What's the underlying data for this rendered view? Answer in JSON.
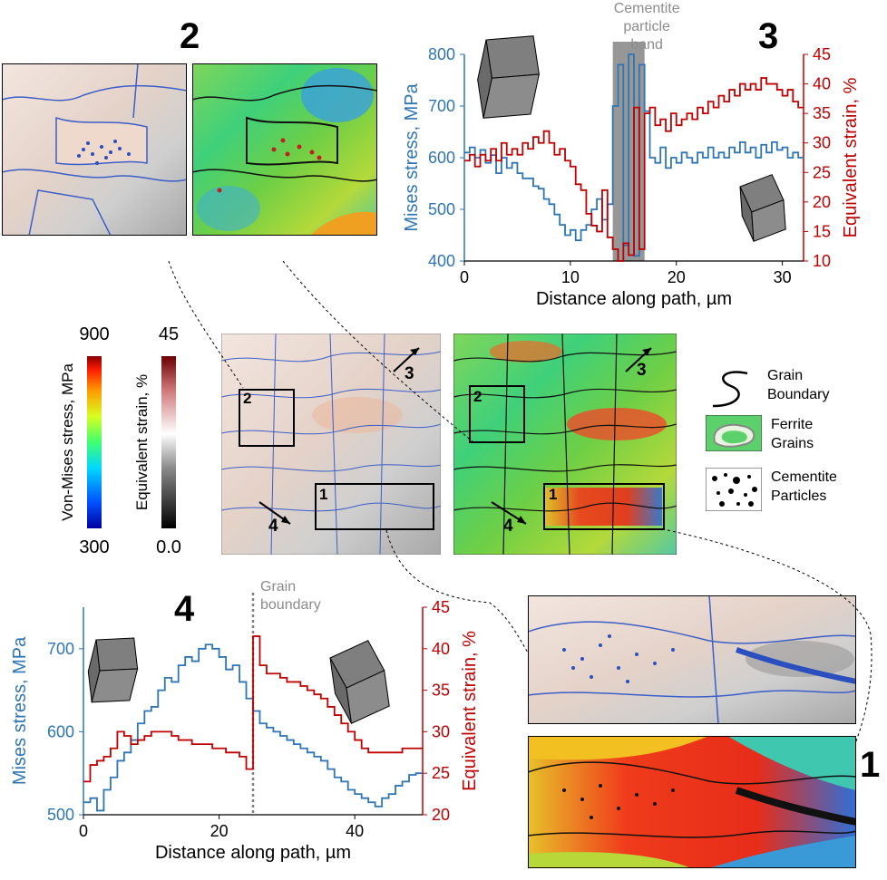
{
  "labels": {
    "panel1": "1",
    "panel2": "2",
    "panel3": "3",
    "panel4": "4",
    "arrow3": "3",
    "arrow4": "4",
    "box1": "1",
    "box2": "2"
  },
  "colorbars": {
    "stress": {
      "title": "Von-Mises stress, MPa",
      "max": "900",
      "min": "300"
    },
    "strain": {
      "title": "Equivalent strain, %",
      "max": "45",
      "min": "0.0"
    }
  },
  "legend": {
    "grain": "Grain Boundary",
    "ferrite": "Ferrite Grains",
    "cementite": "Cementite Particles"
  },
  "colors": {
    "stress_series": "#2e75b6",
    "strain_series": "#c00000",
    "band": "#8c8c8c",
    "gb_line": "#808080"
  },
  "chart_data": [
    {
      "id": "3",
      "type": "line",
      "xlabel": "Distance along path, µm",
      "ylabel": "Mises stress, MPa",
      "y2label": "Equivalent strain, %",
      "xlim": [
        0,
        32
      ],
      "ylim": [
        400,
        800
      ],
      "y2lim": [
        10,
        45
      ],
      "xticks": [
        0,
        10,
        20,
        30
      ],
      "yticks": [
        400,
        500,
        600,
        700,
        800
      ],
      "y2ticks": [
        10,
        15,
        20,
        25,
        30,
        35,
        40,
        45
      ],
      "annotation": "Cementite particle band",
      "band": [
        14.0,
        17.0
      ],
      "series": [
        {
          "axis": "y",
          "x": [
            0,
            0.5,
            1,
            1.5,
            2,
            2.5,
            3,
            3.5,
            4,
            4.5,
            5,
            5.5,
            6,
            6.5,
            7,
            7.5,
            8,
            8.5,
            9,
            9.5,
            10,
            10.5,
            11,
            11.5,
            12,
            12.5,
            13,
            13.5,
            14,
            14.5,
            15,
            15.5,
            16,
            16.5,
            17,
            17.5,
            18,
            18.5,
            19,
            19.5,
            20,
            20.5,
            21,
            21.5,
            22,
            22.5,
            23,
            23.5,
            24,
            24.5,
            25,
            25.5,
            26,
            26.5,
            27,
            27.5,
            28,
            28.5,
            29,
            29.5,
            30,
            30.5,
            31,
            31.5
          ],
          "values": [
            610,
            620,
            600,
            615,
            590,
            605,
            570,
            600,
            580,
            590,
            570,
            560,
            560,
            545,
            540,
            520,
            510,
            490,
            470,
            450,
            460,
            440,
            460,
            470,
            500,
            520,
            480,
            510,
            700,
            780,
            430,
            800,
            410,
            780,
            690,
            600,
            590,
            620,
            580,
            600,
            590,
            610,
            600,
            590,
            610,
            600,
            620,
            600,
            610,
            600,
            620,
            610,
            630,
            610,
            620,
            600,
            625,
            610,
            630,
            615,
            620,
            600,
            610,
            600
          ]
        },
        {
          "axis": "y2",
          "x": [
            0,
            0.5,
            1,
            1.5,
            2,
            2.5,
            3,
            3.5,
            4,
            4.5,
            5,
            5.5,
            6,
            6.5,
            7,
            7.5,
            8,
            8.5,
            9,
            9.5,
            10,
            10.5,
            11,
            11.5,
            12,
            12.5,
            13,
            13.5,
            14,
            14.5,
            15,
            15.5,
            16,
            16.5,
            17,
            17.5,
            18,
            18.5,
            19,
            19.5,
            20,
            20.5,
            21,
            21.5,
            22,
            22.5,
            23,
            23.5,
            24,
            24.5,
            25,
            25.5,
            26,
            26.5,
            27,
            27.5,
            28,
            28.5,
            29,
            29.5,
            30,
            30.5,
            31,
            31.5
          ],
          "values": [
            27,
            28,
            26,
            28,
            27,
            29,
            27,
            30,
            28,
            29,
            28,
            30,
            29,
            31,
            30,
            32,
            30,
            28,
            29,
            27,
            26,
            23,
            22,
            18,
            16,
            15,
            22,
            14,
            12,
            10,
            13,
            11,
            36,
            12,
            35,
            36,
            33,
            34,
            32,
            35,
            33,
            34,
            35,
            34,
            36,
            35,
            37,
            36,
            38,
            37,
            39,
            38,
            40,
            39,
            40,
            39,
            41,
            40,
            40,
            39,
            38,
            39,
            37,
            36
          ]
        }
      ]
    },
    {
      "id": "4",
      "type": "line",
      "xlabel": "Distance along path, µm",
      "ylabel": "Mises stress, MPa",
      "y2label": "Equivalent strain, %",
      "xlim": [
        0,
        50
      ],
      "ylim": [
        500,
        750
      ],
      "y2lim": [
        20,
        45
      ],
      "xticks": [
        0,
        20,
        40
      ],
      "yticks": [
        500,
        600,
        700
      ],
      "y2ticks": [
        20,
        25,
        30,
        35,
        40,
        45
      ],
      "annotation": "Grain boundary",
      "vline": 25,
      "series": [
        {
          "axis": "y",
          "x": [
            0,
            1,
            2,
            3,
            4,
            5,
            6,
            7,
            8,
            9,
            10,
            11,
            12,
            13,
            14,
            15,
            16,
            17,
            18,
            19,
            20,
            21,
            22,
            23,
            24,
            25,
            26,
            27,
            28,
            29,
            30,
            31,
            32,
            33,
            34,
            35,
            36,
            37,
            38,
            39,
            40,
            41,
            42,
            43,
            44,
            45,
            46,
            47,
            48,
            49
          ],
          "values": [
            515,
            520,
            505,
            530,
            545,
            565,
            575,
            590,
            610,
            625,
            630,
            650,
            665,
            660,
            680,
            690,
            685,
            700,
            705,
            700,
            690,
            675,
            680,
            660,
            640,
            625,
            610,
            605,
            600,
            595,
            590,
            585,
            580,
            575,
            570,
            565,
            555,
            545,
            540,
            530,
            525,
            520,
            515,
            510,
            520,
            525,
            535,
            540,
            548,
            550
          ]
        },
        {
          "axis": "y2",
          "x": [
            0,
            1,
            2,
            3,
            4,
            5,
            6,
            7,
            8,
            9,
            10,
            11,
            12,
            13,
            14,
            15,
            16,
            17,
            18,
            19,
            20,
            21,
            22,
            23,
            24,
            25,
            26,
            27,
            28,
            29,
            30,
            31,
            32,
            33,
            34,
            35,
            36,
            37,
            38,
            39,
            40,
            41,
            42,
            43,
            44,
            45,
            46,
            47,
            48,
            49
          ],
          "values": [
            24,
            26,
            26.5,
            27,
            28,
            30,
            29.5,
            28.5,
            29,
            29.5,
            30,
            30,
            30,
            29.5,
            29,
            29,
            28.5,
            28.5,
            28.5,
            28,
            28,
            27.5,
            27.5,
            27,
            25.5,
            41.5,
            38,
            37,
            37,
            36.5,
            36,
            36,
            35.5,
            35,
            34.5,
            34,
            33,
            32,
            31,
            30,
            29,
            28,
            27.5,
            27.5,
            27.5,
            27.5,
            27.5,
            28,
            28,
            28
          ]
        }
      ]
    }
  ]
}
